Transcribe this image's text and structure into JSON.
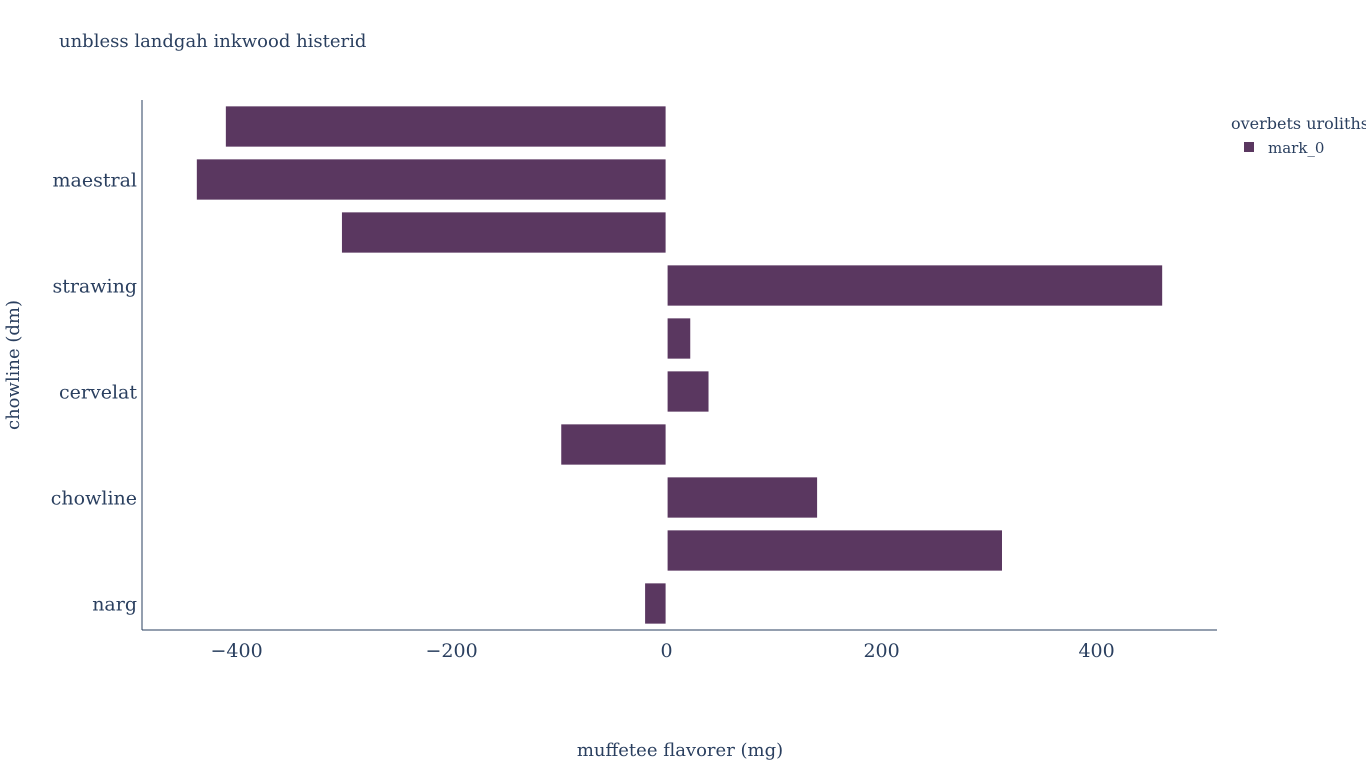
{
  "chart_data": {
    "type": "bar",
    "orientation": "horizontal",
    "title": "unbless landgah inkwood histerid",
    "xlabel": "muffetee flavorer (mg)",
    "ylabel": "chowline (dm)",
    "xlim": [
      -488,
      512
    ],
    "x_ticks": [
      -400,
      -200,
      0,
      200,
      400
    ],
    "x_tick_labels": [
      "−400",
      "−200",
      "0",
      "200",
      "400"
    ],
    "y_tick_labels": [
      "maestral",
      "strawing",
      "cervelat",
      "chowline",
      "narg"
    ],
    "categories": [
      "",
      "maestral",
      "",
      "strawing",
      "",
      "cervelat",
      "",
      "chowline",
      "",
      "narg"
    ],
    "series": [
      {
        "name": "mark_0",
        "color": "#5a3760",
        "values": [
          -410,
          -437,
          -302,
          461,
          22,
          39,
          -98,
          140,
          312,
          -20
        ]
      }
    ],
    "legend": {
      "title": "overbets uroliths",
      "position": "top-right"
    },
    "grid": false
  }
}
